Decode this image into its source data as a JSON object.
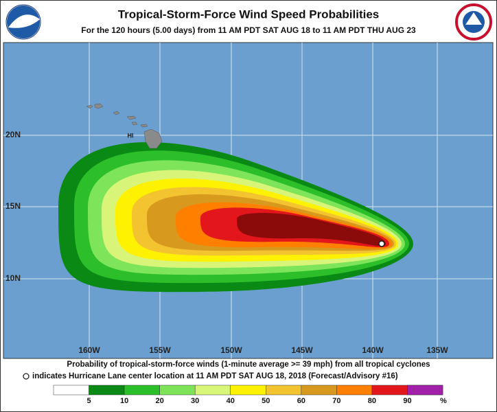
{
  "header": {
    "title": "Tropical-Storm-Force Wind Speed Probabilities",
    "subtitle": "For the 120 hours (5.00 days) from 11 AM PDT SAT AUG 18 to 11 AM PDT THU AUG 23"
  },
  "map": {
    "lat_labels": [
      "20N",
      "15N",
      "10N"
    ],
    "lon_labels": [
      "160W",
      "155W",
      "150W",
      "145W",
      "140W",
      "135W"
    ],
    "place_label": "HI"
  },
  "footer": {
    "line1": "Probability of tropical-storm-force winds (1-minute average >= 39 mph) from all tropical cyclones",
    "line2": "indicates Hurricane Lane center location at 11 AM PDT SAT AUG 18, 2018 (Forecast/Advisory #16)"
  },
  "legend": {
    "values": [
      5,
      10,
      20,
      30,
      40,
      50,
      60,
      70,
      80,
      90
    ],
    "unit": "%",
    "colors": [
      "#ffffff",
      "#0a8a14",
      "#2cbf2a",
      "#7ee45a",
      "#d8f57a",
      "#fff200",
      "#f4c430",
      "#d89a1e",
      "#ff7f00",
      "#e3161b",
      "#8b0a0a",
      "#a020a8"
    ]
  }
}
